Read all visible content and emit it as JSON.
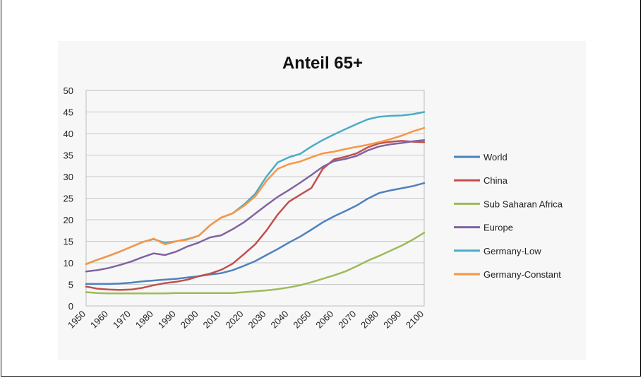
{
  "chart_data": {
    "type": "line",
    "title": "Anteil 65+",
    "xlabel": "",
    "ylabel": "",
    "x": [
      1950,
      1955,
      1960,
      1965,
      1970,
      1975,
      1980,
      1985,
      1990,
      1995,
      2000,
      2005,
      2010,
      2015,
      2020,
      2025,
      2030,
      2035,
      2040,
      2045,
      2050,
      2055,
      2060,
      2065,
      2070,
      2075,
      2080,
      2085,
      2090,
      2095,
      2100
    ],
    "xticks": [
      "1950",
      "1960",
      "1970",
      "1980",
      "1990",
      "2000",
      "2010",
      "2020",
      "2030",
      "2040",
      "2050",
      "2060",
      "2070",
      "2080",
      "2090",
      "2100"
    ],
    "yticks": [
      "0",
      "5",
      "10",
      "15",
      "20",
      "25",
      "30",
      "35",
      "40",
      "45",
      "50"
    ],
    "ylim": [
      0,
      50
    ],
    "grid": "horizontal",
    "legend": "right",
    "series": [
      {
        "name": "World",
        "color": "#4F81BD",
        "values": [
          5.1,
          5.1,
          5.1,
          5.2,
          5.4,
          5.7,
          5.9,
          6.1,
          6.3,
          6.6,
          6.9,
          7.3,
          7.6,
          8.3,
          9.3,
          10.4,
          11.8,
          13.2,
          14.7,
          16.1,
          17.7,
          19.4,
          20.8,
          22.0,
          23.3,
          24.9,
          26.2,
          26.8,
          27.3,
          27.8,
          28.5
        ]
      },
      {
        "name": "China",
        "color": "#C0504D",
        "values": [
          4.5,
          4.0,
          3.8,
          3.7,
          3.8,
          4.2,
          4.8,
          5.3,
          5.6,
          6.1,
          6.9,
          7.5,
          8.4,
          9.8,
          12.0,
          14.3,
          17.5,
          21.2,
          24.2,
          25.8,
          27.4,
          31.8,
          34.0,
          34.6,
          35.4,
          36.8,
          37.7,
          38.1,
          38.3,
          38.1,
          38.0
        ]
      },
      {
        "name": "Sub Saharan Africa",
        "color": "#9BBB59",
        "values": [
          3.2,
          3.0,
          2.9,
          2.9,
          2.9,
          2.9,
          2.9,
          2.9,
          3.0,
          3.0,
          3.0,
          3.0,
          3.0,
          3.0,
          3.2,
          3.4,
          3.6,
          3.9,
          4.3,
          4.8,
          5.5,
          6.3,
          7.1,
          8.0,
          9.2,
          10.5,
          11.6,
          12.8,
          14.0,
          15.4,
          17.0
        ]
      },
      {
        "name": "Europe",
        "color": "#8064A2",
        "values": [
          8.0,
          8.3,
          8.8,
          9.5,
          10.3,
          11.3,
          12.2,
          11.8,
          12.6,
          13.8,
          14.7,
          15.9,
          16.4,
          17.8,
          19.4,
          21.4,
          23.4,
          25.3,
          26.9,
          28.6,
          30.4,
          32.3,
          33.6,
          34.1,
          34.8,
          36.1,
          37.0,
          37.5,
          37.8,
          38.2,
          38.5
        ]
      },
      {
        "name": "Germany-Low",
        "color": "#4BACC6",
        "values": [
          9.7,
          10.7,
          11.6,
          12.6,
          13.7,
          14.8,
          15.5,
          14.6,
          15.0,
          15.5,
          16.3,
          18.7,
          20.5,
          21.5,
          23.5,
          26.0,
          30.0,
          33.3,
          34.5,
          35.3,
          37.0,
          38.5,
          39.8,
          41.0,
          42.2,
          43.3,
          43.9,
          44.1,
          44.2,
          44.5,
          45.0
        ]
      },
      {
        "name": "Germany-Constant",
        "color": "#F79646",
        "values": [
          9.7,
          10.7,
          11.6,
          12.6,
          13.7,
          14.8,
          15.6,
          14.3,
          15.0,
          15.4,
          16.3,
          18.7,
          20.5,
          21.5,
          23.2,
          25.4,
          29.0,
          31.8,
          32.9,
          33.5,
          34.5,
          35.4,
          35.8,
          36.4,
          36.9,
          37.4,
          38.0,
          38.7,
          39.5,
          40.5,
          41.3
        ]
      }
    ]
  }
}
